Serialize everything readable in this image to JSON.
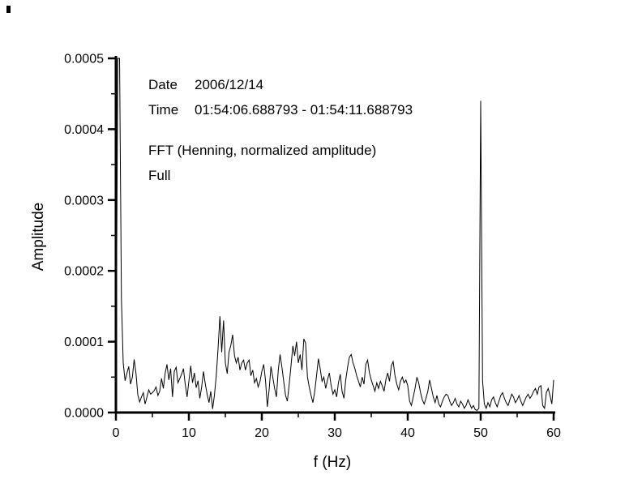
{
  "colors": {
    "background": "#ffffff",
    "foreground": "#000000"
  },
  "annotations": {
    "date_label": "Date",
    "date_value": "2006/12/14",
    "time_label": "Time",
    "time_value": "01:54:06.688793 - 01:54:11.688793",
    "fft_info": "FFT (Henning, normalized amplitude)",
    "range_mode": "Full"
  },
  "chart_data": {
    "type": "line",
    "title": "",
    "xlabel": "f (Hz)",
    "ylabel": "Amplitude",
    "xlim": [
      0,
      60
    ],
    "ylim": [
      0,
      0.0005
    ],
    "grid": false,
    "legend": false,
    "line_color": "#000000",
    "x_major_ticks": [
      0,
      10,
      20,
      30,
      40,
      50,
      60
    ],
    "x_minor_ticks": [
      5,
      15,
      25,
      35,
      45,
      55
    ],
    "y_major_ticks": [
      0,
      0.0001,
      0.0002,
      0.0003,
      0.0004,
      0.0005
    ],
    "y_tick_labels": [
      "0.0000",
      "0.0001",
      "0.0002",
      "0.0003",
      "0.0004",
      "0.0005"
    ],
    "y_minor_ticks": [
      5e-05,
      0.00015,
      0.00025,
      0.00035,
      0.00045
    ],
    "notable_peaks": [
      {
        "f": 0.4,
        "amplitude": 0.0005,
        "note": "DC peak clipped at top of axis"
      },
      {
        "f": 14.3,
        "amplitude": 0.000136
      },
      {
        "f": 50.0,
        "amplitude": 0.00044,
        "note": "mains line spike"
      }
    ],
    "series": [
      {
        "name": "FFT amplitude spectrum",
        "x_start": 0,
        "x_step": 0.25,
        "value_scale": 1e-05,
        "values": [
          2,
          50,
          50,
          16,
          7,
          4.5,
          5.5,
          6.5,
          4,
          5,
          7.5,
          5.5,
          2.5,
          1.5,
          2.2,
          2.8,
          1.2,
          2.2,
          3.2,
          2.6,
          2.8,
          3.1,
          3.6,
          2.4,
          3,
          4.8,
          3.4,
          5.6,
          6.8,
          4.6,
          6.2,
          2.2,
          5.8,
          6.4,
          4.2,
          4.8,
          5.4,
          6.2,
          4,
          2.2,
          4.4,
          6.6,
          4.2,
          5.6,
          3.5,
          4.5,
          2,
          3.6,
          5.8,
          4,
          2.6,
          1.4,
          3,
          0.5,
          2.4,
          5.2,
          9,
          13.6,
          8.5,
          13,
          7,
          5.5,
          8.5,
          9.5,
          11,
          8,
          7,
          7.8,
          6,
          7,
          7.4,
          6,
          7,
          7.4,
          5.2,
          6,
          4.2,
          4.8,
          3.6,
          4.4,
          5.8,
          6.8,
          4.6,
          0.8,
          3.2,
          6.5,
          5,
          3.4,
          2.2,
          6,
          8.2,
          6.4,
          4.4,
          2.4,
          1.6,
          4,
          6.6,
          9.4,
          8,
          10,
          7,
          8.2,
          6,
          10.4,
          9.8,
          5,
          3.6,
          2.4,
          1.4,
          3,
          5.2,
          7.6,
          6.2,
          4.4,
          5,
          3.4,
          4.6,
          5.6,
          3.8,
          2.6,
          3.2,
          2.2,
          4.2,
          5.4,
          3,
          2,
          4.6,
          6.4,
          7.8,
          8.2,
          7,
          6.2,
          5.2,
          4.4,
          3.6,
          5,
          4,
          6.8,
          7.4,
          5.6,
          4.6,
          3.8,
          3,
          4.2,
          3.4,
          4.4,
          3.8,
          3,
          4.6,
          5.6,
          4.4,
          6.6,
          7.2,
          5.2,
          4,
          3.2,
          4.4,
          5,
          4.2,
          4.6,
          3.8,
          1.6,
          1,
          2.2,
          3.4,
          5,
          4.2,
          2.8,
          1.8,
          1.2,
          2,
          3,
          4.6,
          3.4,
          2.2,
          1.4,
          2.4,
          1.2,
          0.8,
          1.6,
          2.2,
          2.6,
          2.4,
          1.6,
          1,
          1.4,
          2,
          1.2,
          0.8,
          1.6,
          1.2,
          0.6,
          1,
          1.8,
          1.2,
          0.6,
          1,
          0.4,
          0.3,
          0.6,
          44,
          4.5,
          1.2,
          0.6,
          1.4,
          0.8,
          1.8,
          2.2,
          1.4,
          0.8,
          1.6,
          2.4,
          2.8,
          2,
          1.4,
          1,
          1.8,
          2.6,
          2.2,
          1.4,
          1.8,
          2.4,
          1.6,
          1,
          1.6,
          2.2,
          2.6,
          2,
          2.4,
          3,
          3.4,
          2.6,
          3.6,
          3.8,
          1,
          0.6,
          2.8,
          3.4,
          2.4,
          1.2,
          4.6
        ]
      }
    ]
  }
}
